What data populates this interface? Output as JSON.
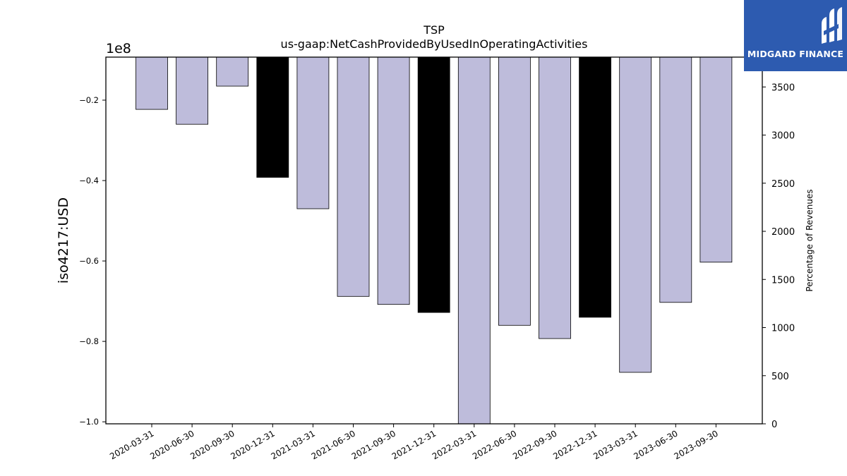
{
  "chart_data": {
    "type": "bar",
    "title": "TSP",
    "subtitle": "us-gaap:NetCashProvidedByUsedInOperatingActivities",
    "ylabel": "iso4217:USD",
    "y_offset_label": "1e8",
    "y2label": "Percentage of Revenues",
    "categories": [
      "2020-03-31",
      "2020-06-30",
      "2020-09-30",
      "2020-12-31",
      "2021-03-31",
      "2021-06-30",
      "2021-09-30",
      "2021-12-31",
      "2022-03-31",
      "2022-06-30",
      "2022-09-30",
      "2022-12-31",
      "2023-03-31",
      "2023-06-30",
      "2023-09-30"
    ],
    "values": [
      -0.223,
      -0.26,
      -0.165,
      -0.392,
      -0.47,
      -0.688,
      -0.708,
      -0.728,
      -1.045,
      -0.76,
      -0.793,
      -0.74,
      -0.877,
      -0.703,
      -0.603
    ],
    "values_unit_multiplier": 100000000,
    "annual": [
      false,
      false,
      false,
      true,
      false,
      false,
      false,
      true,
      false,
      false,
      false,
      true,
      false,
      false,
      false
    ],
    "ylim": [
      -1.005,
      -0.093
    ],
    "yticks": [
      -0.2,
      -0.4,
      -0.6,
      -0.8,
      -1.0
    ],
    "ytick_labels": [
      "−0.2",
      "−0.4",
      "−0.6",
      "−0.8",
      "−1.0"
    ],
    "y2lim": [
      0,
      3810
    ],
    "y2ticks": [
      0,
      500,
      1000,
      1500,
      2000,
      2500,
      3000,
      3500
    ],
    "colors": {
      "quarter": "#bebcdb",
      "annual": "#000000",
      "edge": "#000000"
    },
    "grid": false,
    "legend": "none"
  },
  "logo": {
    "text": "MIDGARD FINANCE"
  }
}
